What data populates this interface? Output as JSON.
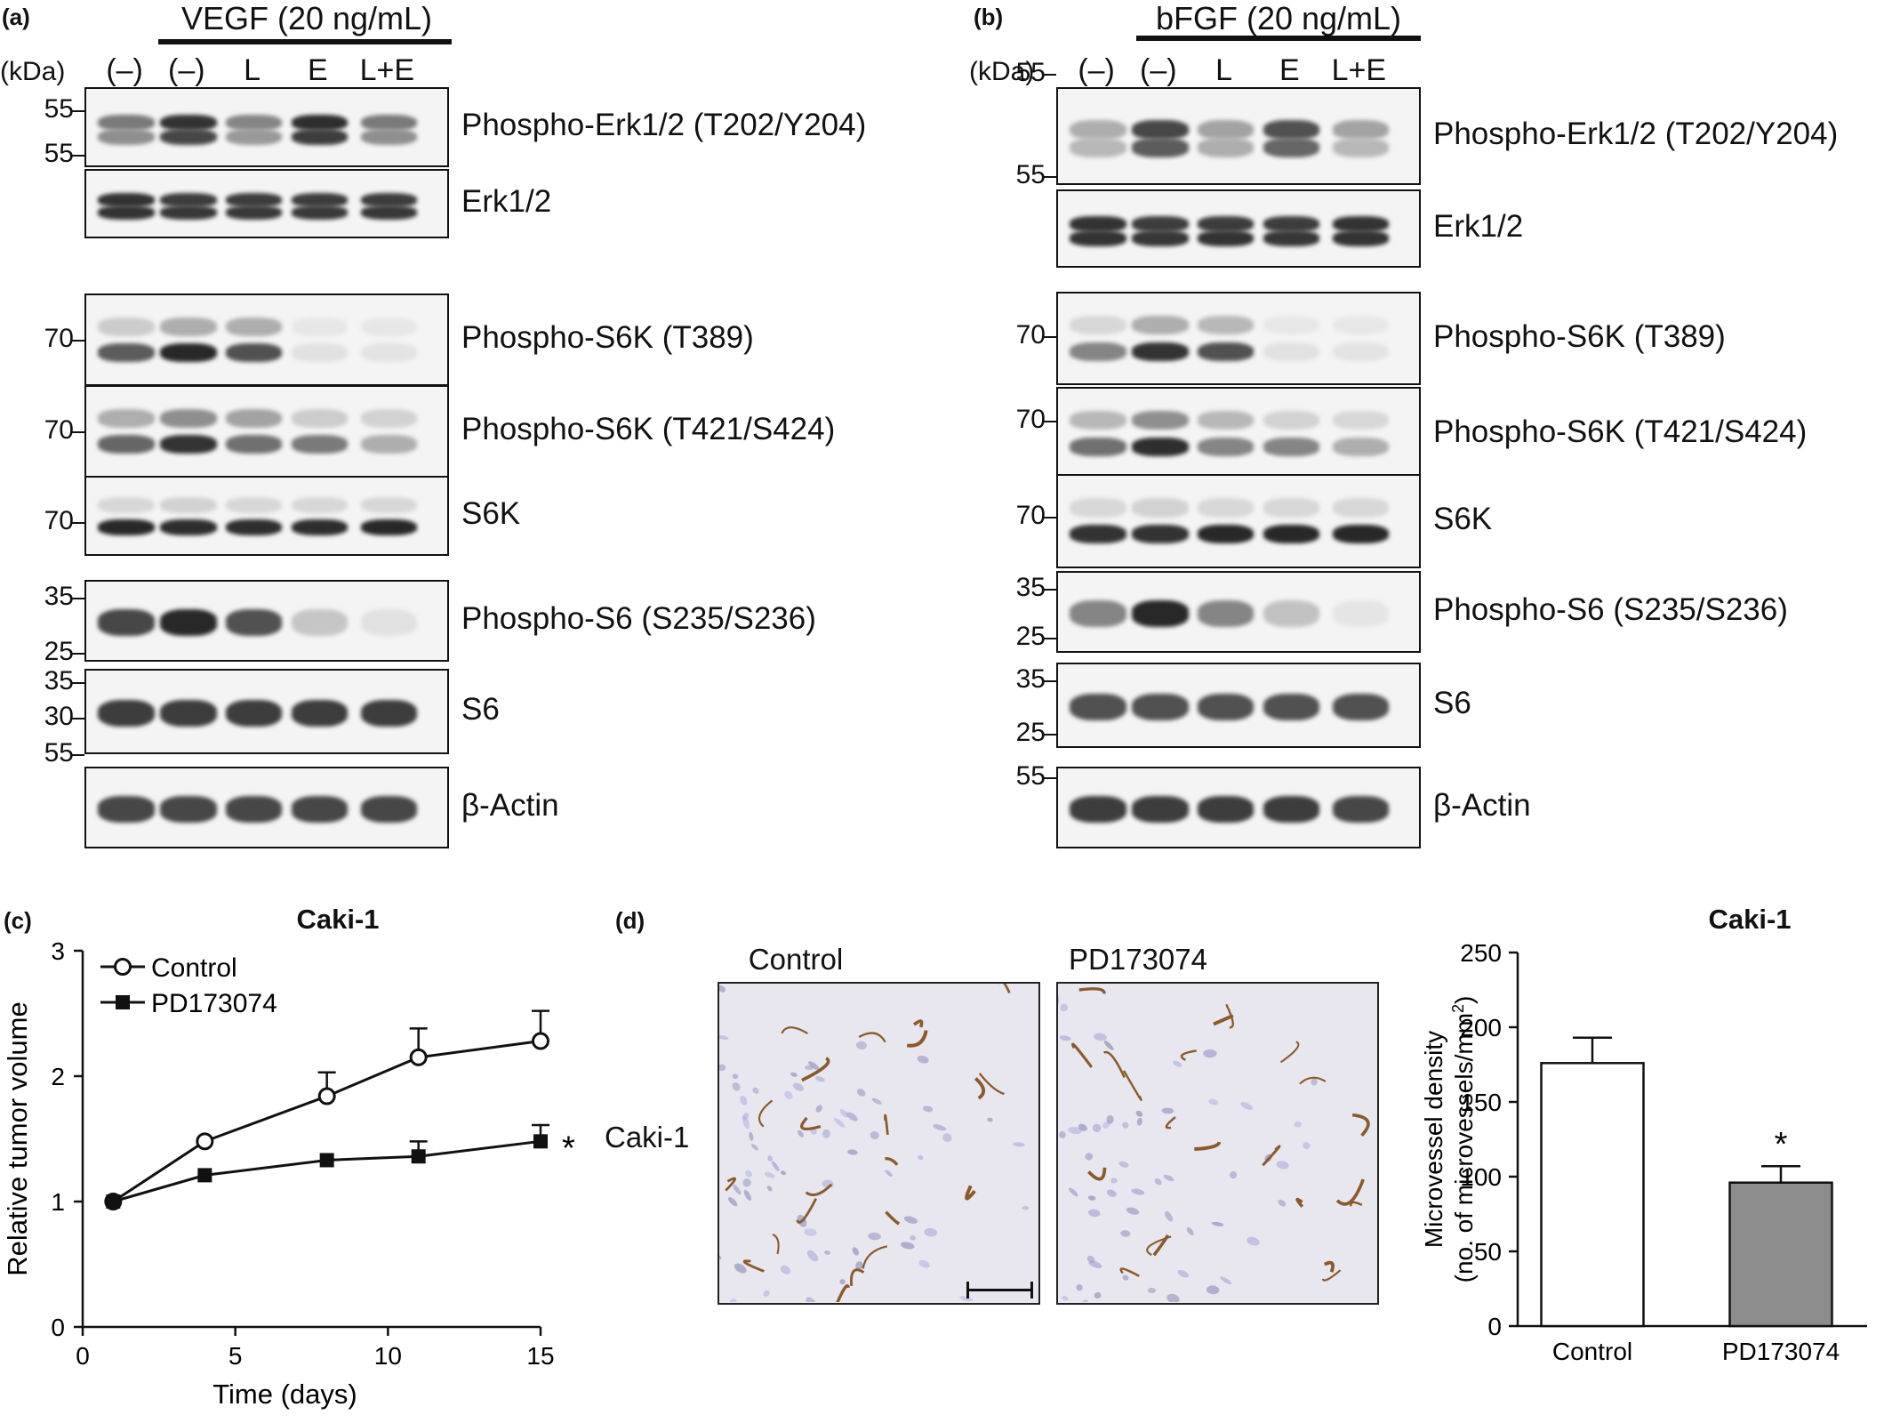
{
  "panel_a": {
    "label": "(a)",
    "treatment": "VEGF (20 ng/mL)",
    "kda_label": "(kDa)",
    "lanes": [
      "(–)",
      "(–)",
      "L",
      "E",
      "L+E"
    ],
    "blots": [
      {
        "protein": "Phospho-Erk1/2 (T202/Y204)",
        "markers": [
          "55"
        ],
        "intensity": [
          [
            0.55,
            0.45
          ],
          [
            0.9,
            0.8
          ],
          [
            0.5,
            0.4
          ],
          [
            0.92,
            0.85
          ],
          [
            0.55,
            0.45
          ]
        ]
      },
      {
        "protein": "Erk1/2",
        "markers": [
          "55"
        ],
        "intensity": [
          [
            0.9,
            0.9
          ],
          [
            0.85,
            0.88
          ],
          [
            0.85,
            0.87
          ],
          [
            0.85,
            0.87
          ],
          [
            0.85,
            0.88
          ]
        ]
      },
      {
        "protein": "Phospho-S6K (T389)",
        "markers": [
          "70"
        ],
        "intensity": [
          [
            0.15,
            0.7
          ],
          [
            0.3,
            0.95
          ],
          [
            0.3,
            0.75
          ],
          [
            0.02,
            0.05
          ],
          [
            0.02,
            0.04
          ]
        ]
      },
      {
        "protein": "Phospho-S6K (T421/S424)",
        "markers": [
          "70"
        ],
        "intensity": [
          [
            0.3,
            0.65
          ],
          [
            0.45,
            0.9
          ],
          [
            0.35,
            0.6
          ],
          [
            0.15,
            0.55
          ],
          [
            0.12,
            0.3
          ]
        ]
      },
      {
        "protein": "S6K",
        "markers": [
          "70"
        ],
        "intensity": [
          [
            0.1,
            0.95
          ],
          [
            0.12,
            0.92
          ],
          [
            0.1,
            0.92
          ],
          [
            0.1,
            0.92
          ],
          [
            0.1,
            0.95
          ]
        ]
      },
      {
        "protein": "Phospho-S6 (S235/S236)",
        "markers": [
          "35",
          "25"
        ],
        "intensity": [
          [
            0.8
          ],
          [
            0.95
          ],
          [
            0.75
          ],
          [
            0.18
          ],
          [
            0.05
          ]
        ]
      },
      {
        "protein": "S6",
        "markers": [
          "35",
          "30"
        ],
        "intensity": [
          [
            0.85
          ],
          [
            0.85
          ],
          [
            0.85
          ],
          [
            0.85
          ],
          [
            0.85
          ]
        ]
      },
      {
        "protein": "β-Actin",
        "markers": [
          "55"
        ],
        "intensity": [
          [
            0.8
          ],
          [
            0.8
          ],
          [
            0.8
          ],
          [
            0.8
          ],
          [
            0.8
          ]
        ]
      }
    ]
  },
  "panel_b": {
    "label": "(b)",
    "treatment": "bFGF (20 ng/mL)",
    "kda_label": "(kDa)",
    "lanes": [
      "(–)",
      "(–)",
      "L",
      "E",
      "L+E"
    ],
    "blots": [
      {
        "protein": "Phospho-Erk1/2 (T202/Y204)",
        "markers": [
          "55"
        ],
        "intensity": [
          [
            0.3,
            0.25
          ],
          [
            0.8,
            0.7
          ],
          [
            0.35,
            0.3
          ],
          [
            0.75,
            0.65
          ],
          [
            0.35,
            0.25
          ]
        ]
      },
      {
        "protein": "Erk1/2",
        "markers": [
          "55"
        ],
        "intensity": [
          [
            0.9,
            0.9
          ],
          [
            0.85,
            0.88
          ],
          [
            0.85,
            0.9
          ],
          [
            0.85,
            0.88
          ],
          [
            0.9,
            0.9
          ]
        ]
      },
      {
        "protein": "Phospho-S6K (T389)",
        "markers": [
          "70"
        ],
        "intensity": [
          [
            0.1,
            0.5
          ],
          [
            0.3,
            0.9
          ],
          [
            0.25,
            0.75
          ],
          [
            0.02,
            0.05
          ],
          [
            0.02,
            0.04
          ]
        ]
      },
      {
        "protein": "Phospho-S6K (T421/S424)",
        "markers": [
          "70"
        ],
        "intensity": [
          [
            0.25,
            0.6
          ],
          [
            0.45,
            0.92
          ],
          [
            0.25,
            0.5
          ],
          [
            0.12,
            0.5
          ],
          [
            0.1,
            0.3
          ]
        ]
      },
      {
        "protein": "S6K",
        "markers": [
          "70"
        ],
        "intensity": [
          [
            0.1,
            0.9
          ],
          [
            0.12,
            0.9
          ],
          [
            0.1,
            0.95
          ],
          [
            0.1,
            0.95
          ],
          [
            0.1,
            0.95
          ]
        ]
      },
      {
        "protein": "Phospho-S6 (S235/S236)",
        "markers": [
          "35",
          "25"
        ],
        "intensity": [
          [
            0.5
          ],
          [
            0.95
          ],
          [
            0.5
          ],
          [
            0.2
          ],
          [
            0.03
          ]
        ]
      },
      {
        "protein": "S6",
        "markers": [
          "35",
          "25"
        ],
        "intensity": [
          [
            0.75
          ],
          [
            0.75
          ],
          [
            0.75
          ],
          [
            0.75
          ],
          [
            0.75
          ]
        ]
      },
      {
        "protein": "β-Actin",
        "markers": [
          "55"
        ],
        "intensity": [
          [
            0.85
          ],
          [
            0.85
          ],
          [
            0.85
          ],
          [
            0.85
          ],
          [
            0.8
          ]
        ]
      }
    ]
  },
  "panel_c": {
    "label": "(c)",
    "title": "Caki-1",
    "significance": "*"
  },
  "panel_d": {
    "label": "(d)",
    "image_titles": [
      "Control",
      "PD173074"
    ],
    "row_label": "Caki-1",
    "chart_title": "Caki-1",
    "significance": "*"
  },
  "chart_data": [
    {
      "type": "line",
      "title": "Caki-1",
      "xlabel": "Time (days)",
      "ylabel": "Relative tumor volume",
      "xlim": [
        0,
        15
      ],
      "ylim": [
        0,
        3
      ],
      "xticks": [
        "0",
        "5",
        "10",
        "15"
      ],
      "yticks": [
        "0",
        "1",
        "2",
        "3"
      ],
      "legend_position": "top-left",
      "series": [
        {
          "name": "Control",
          "marker": "open-circle",
          "x": [
            1,
            4,
            8,
            11,
            15
          ],
          "y": [
            1.0,
            1.48,
            1.84,
            2.15,
            2.28
          ],
          "err": [
            0.0,
            0.0,
            0.19,
            0.23,
            0.24
          ]
        },
        {
          "name": "PD173074",
          "marker": "filled-square",
          "x": [
            1,
            4,
            8,
            11,
            15
          ],
          "y": [
            1.0,
            1.21,
            1.33,
            1.36,
            1.48
          ],
          "err": [
            0.0,
            0.0,
            0.0,
            0.12,
            0.13
          ]
        }
      ]
    },
    {
      "type": "bar",
      "title": "Caki-1",
      "ylabel": "Microvessel density",
      "ylabel2": "(no. of microvessels/mm",
      "ylabel2_sup": "2",
      "ylabel2_close": ")",
      "categories": [
        "Control",
        "PD173074"
      ],
      "values": [
        176,
        96
      ],
      "errors": [
        17,
        11
      ],
      "colors": [
        "#ffffff",
        "#8c8c8c"
      ],
      "ylim": [
        0,
        250
      ],
      "yticks": [
        "0",
        "50",
        "100",
        "150",
        "200",
        "250"
      ]
    }
  ]
}
